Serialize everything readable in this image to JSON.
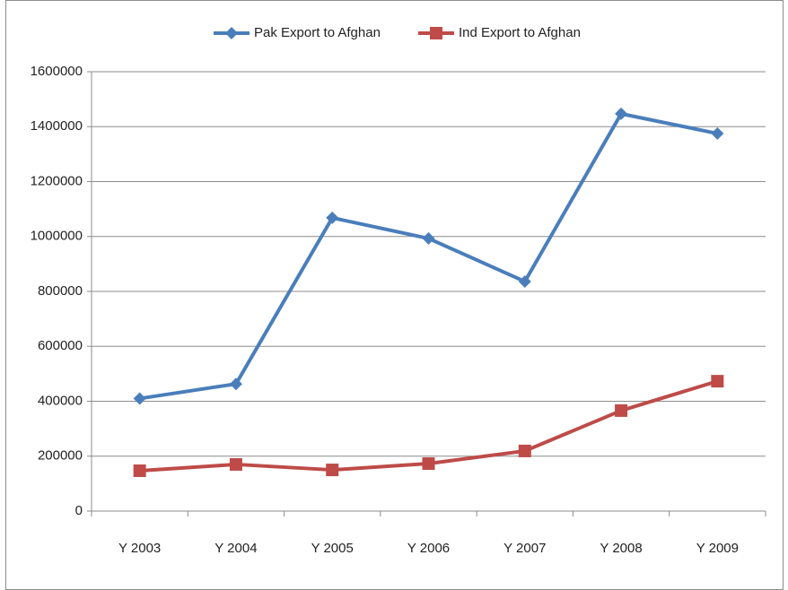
{
  "chart_data": {
    "type": "line",
    "categories": [
      "Y 2003",
      "Y 2004",
      "Y 2005",
      "Y 2006",
      "Y 2007",
      "Y 2008",
      "Y 2009"
    ],
    "series": [
      {
        "name": "Pak Export to Afghan",
        "color": "#4a7ebb",
        "marker": "diamond",
        "values": [
          410000,
          463000,
          1068000,
          993000,
          836000,
          1447000,
          1375000
        ]
      },
      {
        "name": "Ind Export to Afghan",
        "color": "#be4b48",
        "marker": "square",
        "values": [
          147000,
          170000,
          150000,
          173000,
          219000,
          366000,
          473000
        ]
      }
    ],
    "ylim": [
      0,
      1600000
    ],
    "yticks": [
      0,
      200000,
      400000,
      600000,
      800000,
      1000000,
      1200000,
      1400000,
      1600000
    ],
    "grid": true,
    "legend": "top"
  }
}
